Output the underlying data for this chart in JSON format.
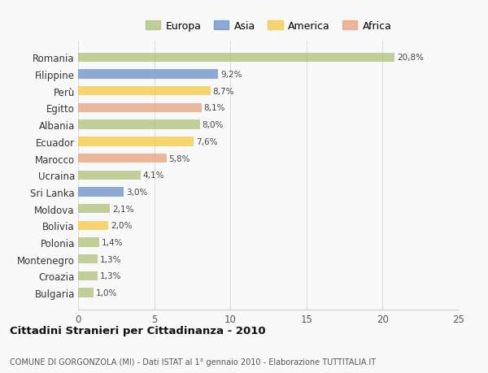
{
  "categories": [
    "Romania",
    "Filippine",
    "Perù",
    "Egitto",
    "Albania",
    "Ecuador",
    "Marocco",
    "Ucraina",
    "Sri Lanka",
    "Moldova",
    "Bolivia",
    "Polonia",
    "Montenegro",
    "Croazia",
    "Bulgaria"
  ],
  "values": [
    20.8,
    9.2,
    8.7,
    8.1,
    8.0,
    7.6,
    5.8,
    4.1,
    3.0,
    2.1,
    2.0,
    1.4,
    1.3,
    1.3,
    1.0
  ],
  "labels": [
    "20,8%",
    "9,2%",
    "8,7%",
    "8,1%",
    "8,0%",
    "7,6%",
    "5,8%",
    "4,1%",
    "3,0%",
    "2,1%",
    "2,0%",
    "1,4%",
    "1,3%",
    "1,3%",
    "1,0%"
  ],
  "colors": [
    "#adc178",
    "#6a8fc8",
    "#f5c842",
    "#e8a07a",
    "#adc178",
    "#f5c842",
    "#e8a07a",
    "#adc178",
    "#6a8fc8",
    "#adc178",
    "#f5c842",
    "#adc178",
    "#adc178",
    "#adc178",
    "#adc178"
  ],
  "legend_labels": [
    "Europa",
    "Asia",
    "America",
    "Africa"
  ],
  "legend_colors": [
    "#adc178",
    "#6a8fc8",
    "#f5c842",
    "#e8a07a"
  ],
  "title": "Cittadini Stranieri per Cittadinanza - 2010",
  "subtitle": "COMUNE DI GORGONZOLA (MI) - Dati ISTAT al 1° gennaio 2010 - Elaborazione TUTTITALIA.IT",
  "xlim": [
    0,
    25
  ],
  "xticks": [
    0,
    5,
    10,
    15,
    20,
    25
  ],
  "background_color": "#f9f9f9",
  "bar_alpha": 0.75,
  "bar_height": 0.55
}
